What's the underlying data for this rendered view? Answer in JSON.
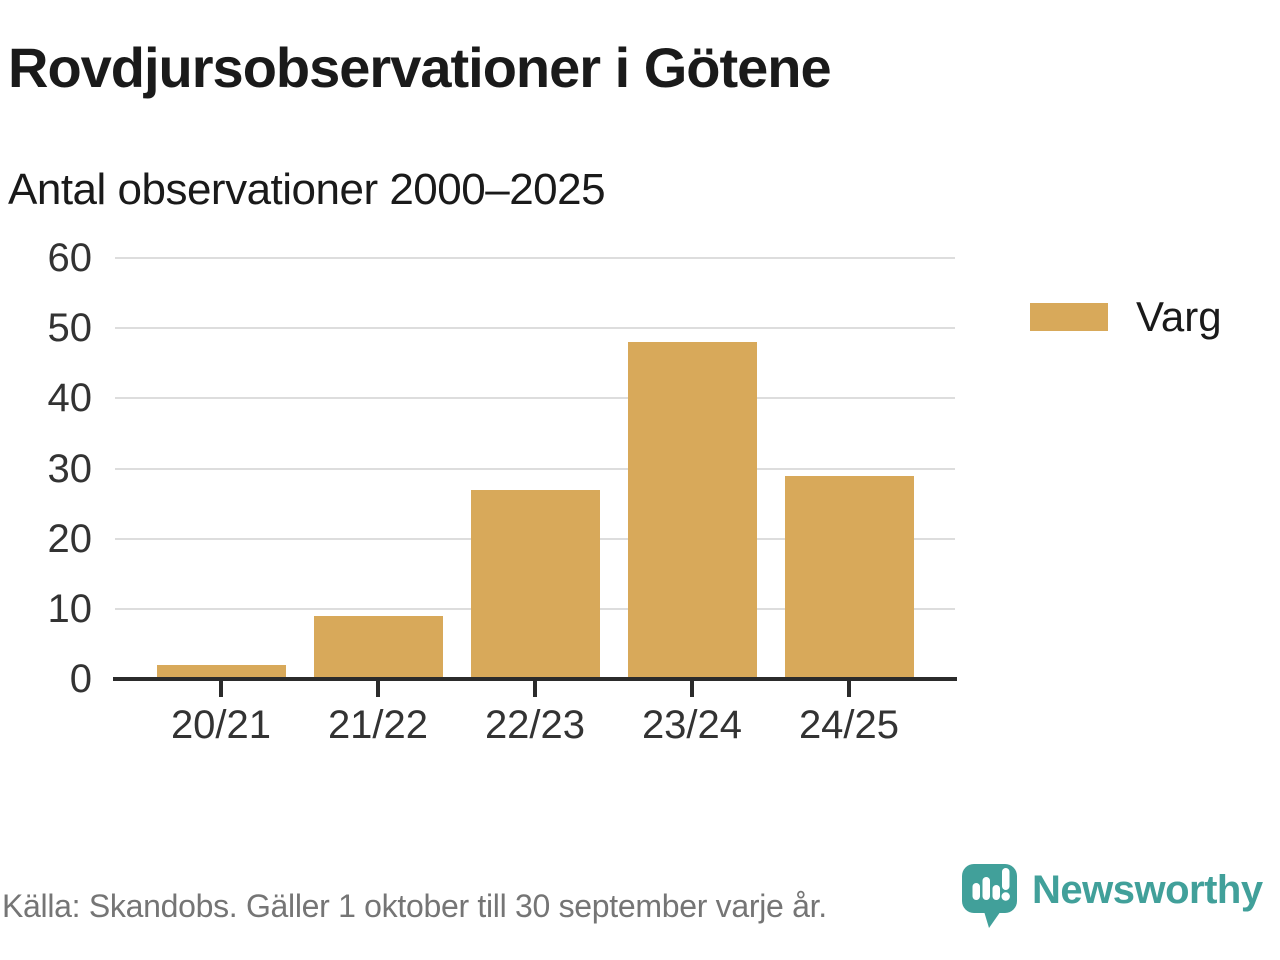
{
  "header": {
    "title": "Rovdjursobservationer i Götene",
    "subtitle": "Antal observationer 2000–2025"
  },
  "chart_data": {
    "type": "bar",
    "title": "Rovdjursobservationer i Götene",
    "subtitle": "Antal observationer 2000–2025",
    "categories": [
      "20/21",
      "21/22",
      "22/23",
      "23/24",
      "24/25"
    ],
    "series": [
      {
        "name": "Varg",
        "values": [
          2,
          9,
          27,
          48,
          29
        ]
      }
    ],
    "xlabel": "",
    "ylabel": "",
    "ylim": [
      0,
      60
    ],
    "yticks": [
      0,
      10,
      20,
      30,
      40,
      50,
      60
    ],
    "grid": true,
    "legend_position": "right"
  },
  "legend": {
    "label": "Varg"
  },
  "footer": {
    "source": "Källa: Skandobs. Gäller 1 oktober till 30 september varje år.",
    "brand": "Newsworthy"
  },
  "colors": {
    "bar": "#D8A95A",
    "axis": "#2B2B2B",
    "gridline": "#DDDDDD",
    "text_dark": "#1A1A1A",
    "tick_label": "#333333",
    "footer_text": "#757575",
    "brand_teal": "#41A09A"
  }
}
